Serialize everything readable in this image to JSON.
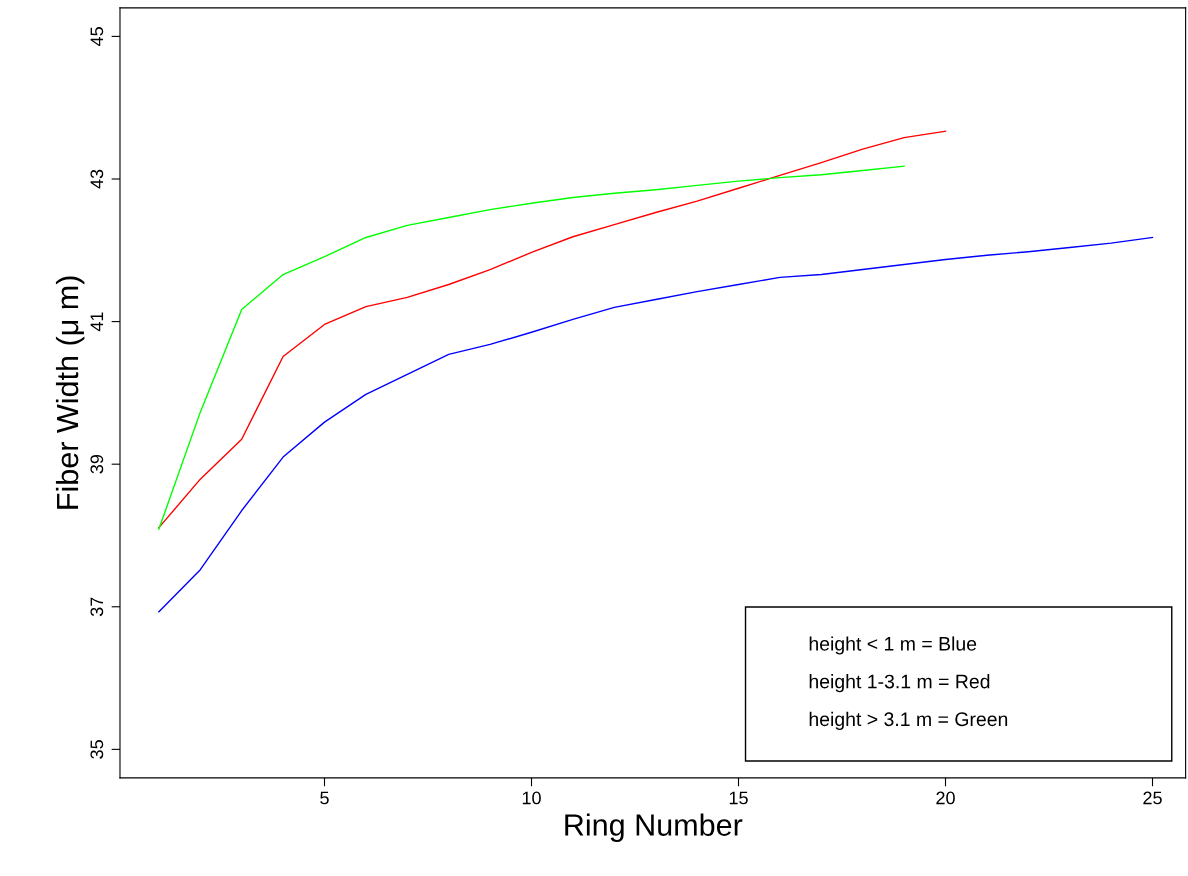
{
  "chart_data": {
    "type": "line",
    "xlabel": "Ring Number",
    "ylabel": "Fiber Width (μ m)",
    "x": [
      1,
      2,
      3,
      4,
      5,
      6,
      7,
      8,
      9,
      10,
      11,
      12,
      13,
      14,
      15,
      16,
      17,
      18,
      19,
      20,
      21,
      22,
      23,
      24,
      25
    ],
    "series": [
      {
        "color": "#0000ff",
        "values": [
          36.93,
          37.52,
          38.35,
          39.1,
          39.59,
          39.98,
          40.26,
          40.54,
          40.68,
          40.85,
          41.03,
          41.2,
          41.31,
          41.42,
          41.52,
          41.62,
          41.66,
          41.73,
          41.8,
          41.87,
          41.93,
          41.98,
          42.04,
          42.1,
          42.18
        ]
      },
      {
        "color": "#ff0000",
        "values": [
          38.11,
          38.79,
          39.35,
          40.51,
          40.96,
          41.21,
          41.34,
          41.52,
          41.73,
          41.97,
          42.19,
          42.36,
          42.53,
          42.69,
          42.87,
          43.05,
          43.23,
          43.42,
          43.58,
          43.67,
          null,
          null,
          null,
          null,
          null
        ]
      },
      {
        "color": "#00ff00",
        "values": [
          38.09,
          39.73,
          41.17,
          41.66,
          41.91,
          42.18,
          42.35,
          42.46,
          42.57,
          42.66,
          42.74,
          42.8,
          42.85,
          42.91,
          42.97,
          43.02,
          43.06,
          43.12,
          43.18,
          null,
          null,
          null,
          null,
          null,
          null
        ]
      }
    ],
    "annotations": [
      "height < 1 m = Blue",
      "height 1-3.1 m = Red",
      "height > 3.1 m = Green"
    ],
    "xlim": [
      0.06,
      25.8
    ],
    "ylim": [
      34.6,
      45.4
    ],
    "xticks": [
      5,
      10,
      15,
      20,
      25
    ],
    "yticks": [
      35,
      37,
      39,
      41,
      43,
      45
    ],
    "grid": false,
    "legend": false,
    "marker": "none",
    "line_style": "solid"
  }
}
